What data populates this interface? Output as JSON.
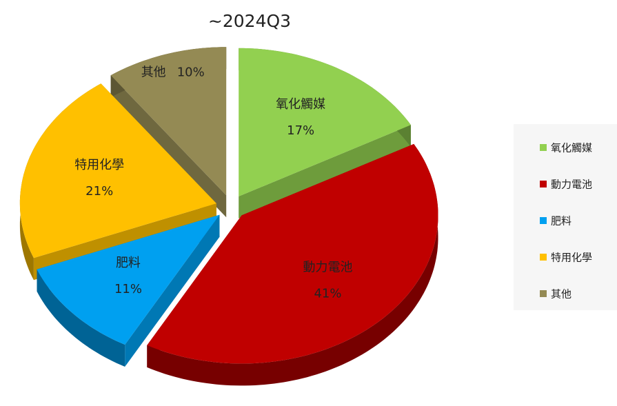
{
  "chart_data": {
    "type": "pie3d",
    "title": "~2024Q3",
    "categories": [
      "氧化觸媒",
      "動力電池",
      "肥料",
      "特用化學",
      "其他"
    ],
    "values": [
      17,
      41,
      11,
      21,
      10
    ],
    "value_labels": [
      "17%",
      "41%",
      "11%",
      "21%",
      "10%"
    ],
    "colors": [
      "#92d050",
      "#c00000",
      "#00a0f0",
      "#ffc000",
      "#948a54"
    ],
    "legend": "right"
  }
}
